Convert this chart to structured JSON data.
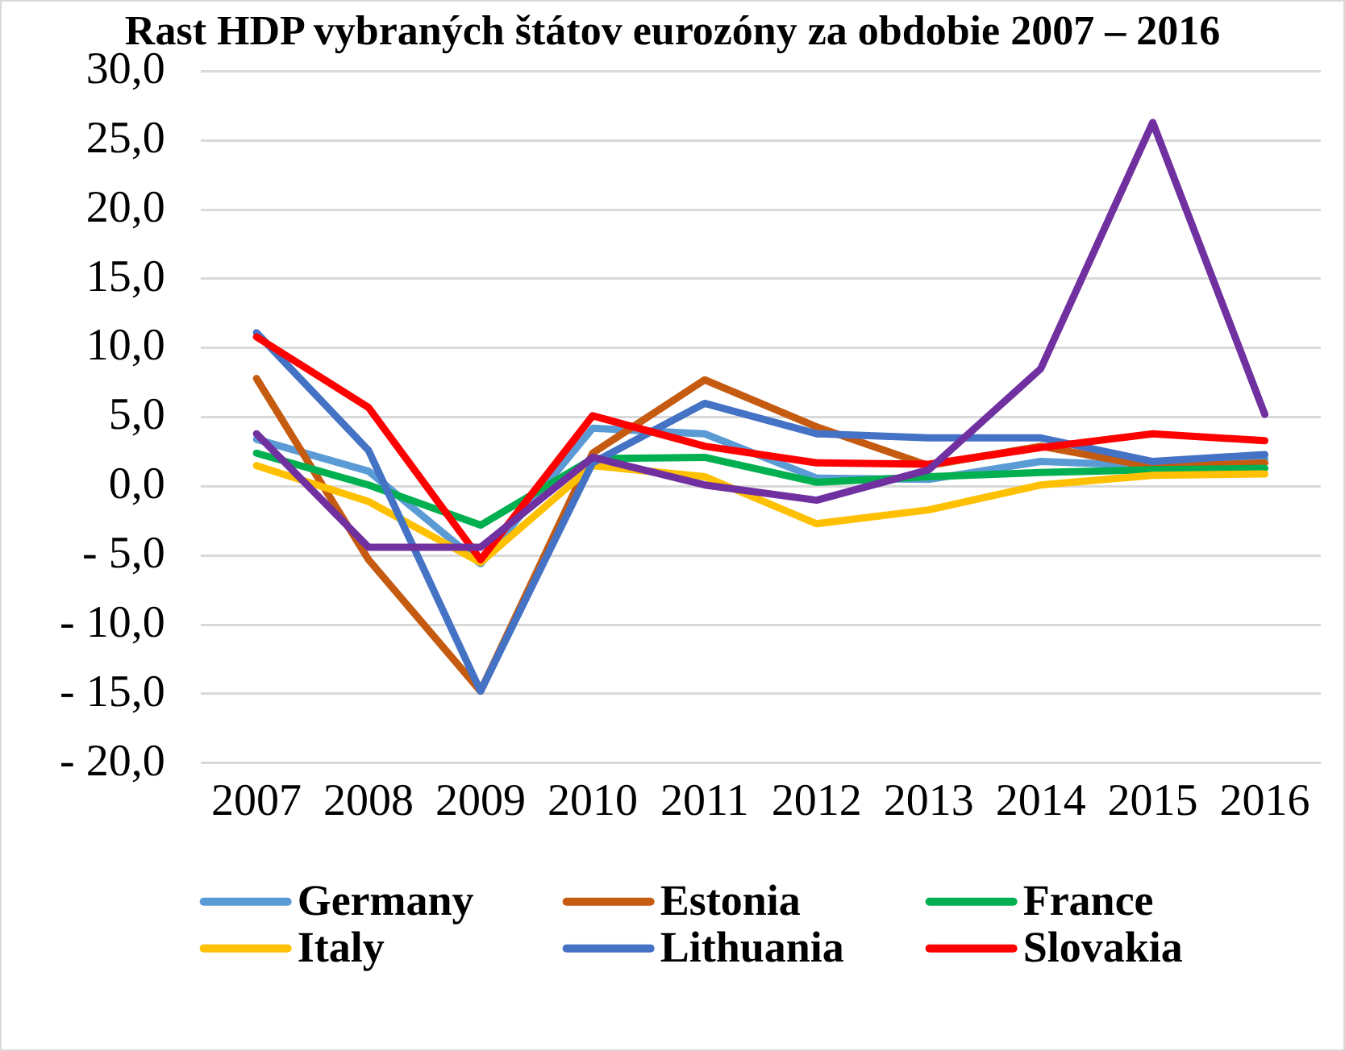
{
  "chart_data": {
    "type": "line",
    "title": "Rast HDP vybraných štátov eurozóny za obdobie 2007 – 2016",
    "categories": [
      "2007",
      "2008",
      "2009",
      "2010",
      "2011",
      "2012",
      "2013",
      "2014",
      "2015",
      "2016"
    ],
    "series": [
      {
        "name": "Germany",
        "color": "#5b9bd5",
        "values": [
          3.4,
          1.1,
          -5.6,
          4.2,
          3.8,
          0.6,
          0.5,
          1.8,
          1.5,
          2.0
        ]
      },
      {
        "name": "Estonia",
        "color": "#c55a11",
        "values": [
          7.8,
          -5.3,
          -14.8,
          2.4,
          7.7,
          4.3,
          1.5,
          2.9,
          1.4,
          1.7
        ]
      },
      {
        "name": "France",
        "color": "#00b050",
        "values": [
          2.4,
          0.1,
          -2.8,
          2.0,
          2.1,
          0.3,
          0.7,
          1.0,
          1.2,
          1.3
        ]
      },
      {
        "name": "Italy",
        "color": "#ffc000",
        "values": [
          1.5,
          -1.1,
          -5.5,
          1.5,
          0.7,
          -2.7,
          -1.7,
          0.1,
          0.8,
          0.9
        ]
      },
      {
        "name": "Lithuania",
        "color": "#4472c4",
        "values": [
          11.1,
          2.6,
          -14.8,
          1.7,
          6.0,
          3.8,
          3.5,
          3.5,
          1.8,
          2.3
        ]
      },
      {
        "name": "Slovakia",
        "color": "#ff0000",
        "values": [
          10.8,
          5.7,
          -5.3,
          5.1,
          2.9,
          1.7,
          1.6,
          2.8,
          3.8,
          3.3
        ]
      },
      {
        "color": "#7030a0",
        "values": [
          3.8,
          -4.4,
          -4.4,
          2.1,
          0.1,
          -1.0,
          1.2,
          8.5,
          26.3,
          5.2
        ]
      }
    ],
    "ylim": [
      -20,
      30
    ],
    "yticks": [
      {
        "value": 30,
        "label": "30,0"
      },
      {
        "value": 25,
        "label": "25,0"
      },
      {
        "value": 20,
        "label": "20,0"
      },
      {
        "value": 15,
        "label": "15,0"
      },
      {
        "value": 10,
        "label": "10,0"
      },
      {
        "value": 5,
        "label": "5,0"
      },
      {
        "value": 0,
        "label": "0,0"
      },
      {
        "value": -5,
        "label": "- 5,0"
      },
      {
        "value": -10,
        "label": "- 10,0"
      },
      {
        "value": -15,
        "label": "- 15,0"
      },
      {
        "value": -20,
        "label": "- 20,0"
      }
    ],
    "grid": "y",
    "legend": "bottom",
    "marker": "none",
    "line_style": "solid"
  }
}
